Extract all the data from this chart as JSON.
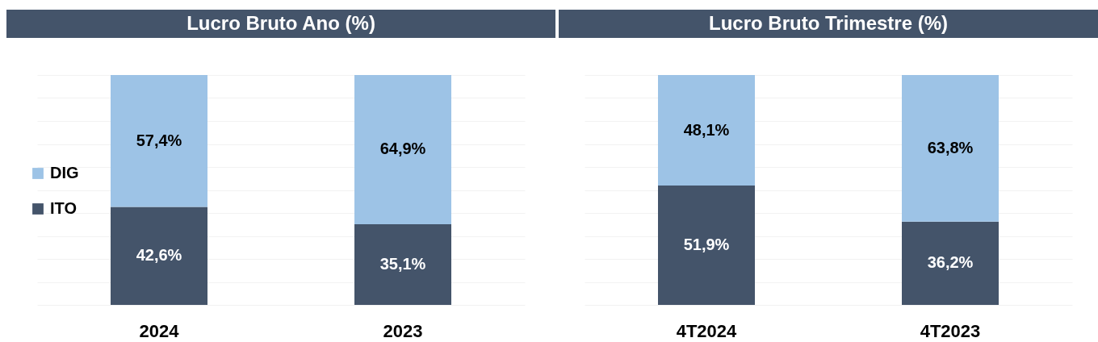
{
  "chart_data": [
    {
      "type": "bar",
      "title": "Lucro Bruto Ano (%)",
      "categories": [
        "2024",
        "2023"
      ],
      "stacked": true,
      "series": [
        {
          "name": "ITO",
          "color": "#44546a",
          "values": [
            42.6,
            35.1
          ],
          "value_labels": [
            "42,6%",
            "35,1%"
          ]
        },
        {
          "name": "DIG",
          "color": "#9dc3e6",
          "values": [
            57.4,
            64.9
          ],
          "value_labels": [
            "57,4%",
            "64,9%"
          ]
        }
      ],
      "ylim": [
        0,
        100
      ],
      "grid": "y",
      "tick_labels": "x",
      "legend": "left"
    },
    {
      "type": "bar",
      "title": "Lucro Bruto Trimestre (%)",
      "categories": [
        "4T2024",
        "4T2023"
      ],
      "stacked": true,
      "series": [
        {
          "name": "ITO",
          "color": "#44546a",
          "values": [
            51.9,
            36.2
          ],
          "value_labels": [
            "51,9%",
            "36,2%"
          ]
        },
        {
          "name": "DIG",
          "color": "#9dc3e6",
          "values": [
            48.1,
            63.8
          ],
          "value_labels": [
            "48,1%",
            "63,8%"
          ]
        }
      ],
      "ylim": [
        0,
        100
      ],
      "grid": "y",
      "tick_labels": "x",
      "legend": "left"
    }
  ]
}
